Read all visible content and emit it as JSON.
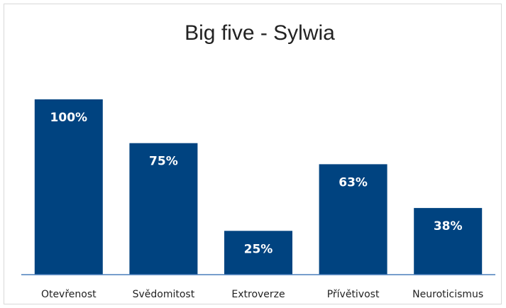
{
  "chart_data": {
    "type": "bar",
    "title": "Big five - Sylwia",
    "categories": [
      "Otevřenost",
      "Svědomitost",
      "Extroverze",
      "Přívětivost",
      "Neuroticismus"
    ],
    "values": [
      100,
      75,
      25,
      63,
      38
    ],
    "data_labels": [
      "100%",
      "75%",
      "25%",
      "63%",
      "38%"
    ],
    "ylim": [
      0,
      100
    ],
    "grid": false,
    "legend": "none",
    "bar_color": "#004380",
    "axis_color": "#4a7ebb"
  }
}
